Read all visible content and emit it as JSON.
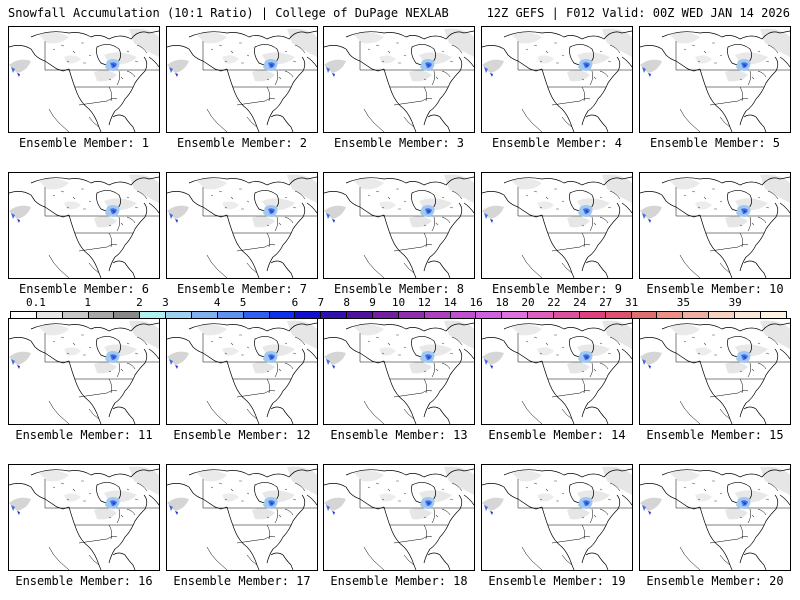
{
  "header": {
    "left_title": "Snowfall Accumulation (10:1 Ratio) | College of DuPage NEXLAB",
    "right_title": "12Z GEFS | F012 Valid: 00Z WED JAN 14 2026"
  },
  "members": [
    {
      "caption": "Ensemble Member: 1"
    },
    {
      "caption": "Ensemble Member: 2"
    },
    {
      "caption": "Ensemble Member: 3"
    },
    {
      "caption": "Ensemble Member: 4"
    },
    {
      "caption": "Ensemble Member: 5"
    },
    {
      "caption": "Ensemble Member: 6"
    },
    {
      "caption": "Ensemble Member: 7"
    },
    {
      "caption": "Ensemble Member: 8"
    },
    {
      "caption": "Ensemble Member: 9"
    },
    {
      "caption": "Ensemble Member: 10"
    },
    {
      "caption": "Ensemble Member: 11"
    },
    {
      "caption": "Ensemble Member: 12"
    },
    {
      "caption": "Ensemble Member: 13"
    },
    {
      "caption": "Ensemble Member: 14"
    },
    {
      "caption": "Ensemble Member: 15"
    },
    {
      "caption": "Ensemble Member: 16"
    },
    {
      "caption": "Ensemble Member: 17"
    },
    {
      "caption": "Ensemble Member: 18"
    },
    {
      "caption": "Ensemble Member: 19"
    },
    {
      "caption": "Ensemble Member: 20"
    }
  ],
  "colorbar": {
    "labels": [
      "0.1",
      "1",
      "2",
      "3",
      "4",
      "5",
      "6",
      "7",
      "8",
      "9",
      "10",
      "12",
      "14",
      "16",
      "18",
      "20",
      "22",
      "24",
      "27",
      "31",
      "35",
      "39"
    ],
    "colors": [
      "#ffffff",
      "#e8e8e8",
      "#c8c8c8",
      "#a8a8a8",
      "#888888",
      "#b0f0f0",
      "#a0d0f0",
      "#80b0f0",
      "#6090f0",
      "#3060f0",
      "#1030f0",
      "#1010d0",
      "#3010b0",
      "#5010a0",
      "#7020a0",
      "#9030b0",
      "#b040c0",
      "#c050d0",
      "#d060e0",
      "#e070e0",
      "#e060c0",
      "#e050a0",
      "#e04080",
      "#e05070",
      "#e07070",
      "#f09080",
      "#f0b0a0",
      "#f8d0c0",
      "#fce8d8",
      "#fff4e0"
    ]
  },
  "colors": {
    "land_gray": "#c8c8c8",
    "snow_light_blue": "#a0c8f0",
    "snow_blue": "#4070e8",
    "snow_dark_blue": "#2030d0"
  }
}
